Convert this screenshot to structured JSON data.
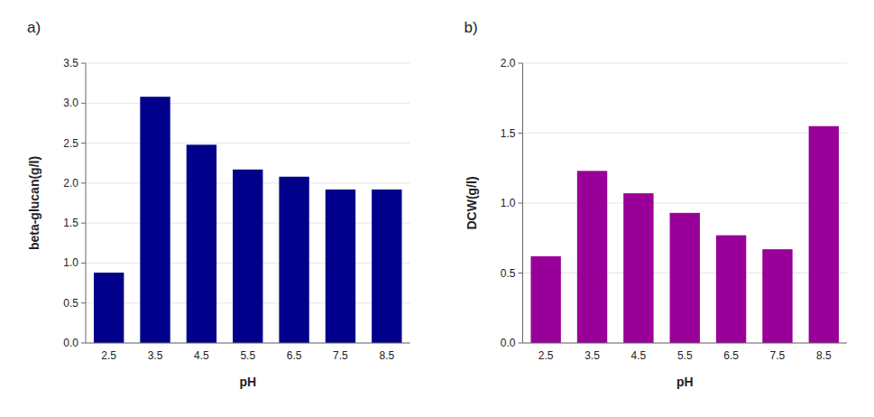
{
  "chart_data": [
    {
      "type": "bar",
      "title": "a)",
      "categories": [
        "2.5",
        "3.5",
        "4.5",
        "5.5",
        "6.5",
        "7.5",
        "8.5"
      ],
      "values": [
        0.88,
        3.08,
        2.48,
        2.17,
        2.08,
        1.92,
        1.92
      ],
      "color": "#00008B",
      "xlabel": "pH",
      "ylabel": "beta-glucan(g/l)",
      "ylim": [
        0,
        3.5
      ],
      "yticks": [
        {
          "value": 0.0,
          "label": "0.0"
        },
        0.5,
        {
          "value": 1.0,
          "label": "1.0"
        },
        1.5,
        {
          "value": 2.0,
          "label": "2.0"
        },
        2.5,
        {
          "value": 3.0,
          "label": "3.0"
        },
        3.5
      ]
    },
    {
      "type": "bar",
      "title": "b)",
      "categories": [
        "2.5",
        "3.5",
        "4.5",
        "5.5",
        "6.5",
        "7.5",
        "8.5"
      ],
      "values": [
        0.62,
        1.23,
        1.07,
        0.93,
        0.77,
        0.67,
        1.55
      ],
      "color": "#990099",
      "xlabel": "pH",
      "ylabel": "DCW(g/l)",
      "ylim": [
        0,
        2.0
      ],
      "yticks": [
        {
          "value": 0.0,
          "label": "0.0"
        },
        0.5,
        {
          "value": 1.0,
          "label": "1.0"
        },
        1.5,
        {
          "value": 2.0,
          "label": "2.0"
        }
      ]
    }
  ]
}
